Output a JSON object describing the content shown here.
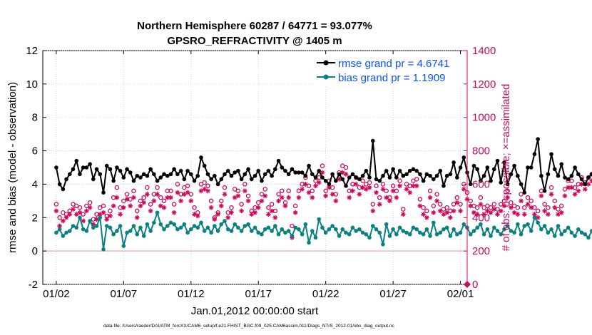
{
  "chart_data": {
    "type": "line",
    "title_line1": "Northern Hemisphere 60287 / 64771 = 93.077%",
    "title_line2": "GPSRO_REFRACTIVITY @ 1405 m",
    "xlabel": "Jan.01,2012 00:00:00 start",
    "ylabel_left": "rmse and bias (model - observation)",
    "ylabel_right": "# of obs: o=possible; ×=assimilated",
    "xlim_days": [
      0,
      31.5
    ],
    "ylim_left": [
      -2,
      12
    ],
    "ylim_right": [
      0,
      1400
    ],
    "x_tick_labels": [
      "01/02",
      "01/07",
      "01/12",
      "01/17",
      "01/22",
      "01/27",
      "02/01"
    ],
    "x_tick_days": [
      1,
      6,
      11,
      16,
      21,
      26,
      31
    ],
    "y_left_ticks": [
      "-2",
      "0",
      "2",
      "4",
      "6",
      "8",
      "10",
      "12"
    ],
    "y_right_ticks": [
      "0",
      "200",
      "400",
      "600",
      "800",
      "1000",
      "1200",
      "1400"
    ],
    "legend": {
      "rmse": "rmse grand pr = 4.6741",
      "bias": "bias grand pr = 1.1909"
    },
    "colors": {
      "rmse": "#000000",
      "bias": "#0a8080",
      "obs": "#cc0a5c",
      "legend_text": "#0a52ff",
      "zero_line": "#e8b0c4"
    },
    "x_step_days": 0.25,
    "series": [
      {
        "name": "rmse",
        "values": [
          5.0,
          4.0,
          3.7,
          4.3,
          4.6,
          4.9,
          5.4,
          4.6,
          5.0,
          5.0,
          5.2,
          4.3,
          4.9,
          4.6,
          3.5,
          5.1,
          4.9,
          4.2,
          5.0,
          4.8,
          4.4,
          4.9,
          4.7,
          4.2,
          4.5,
          4.4,
          4.6,
          4.5,
          4.9,
          4.6,
          4.2,
          4.4,
          4.6,
          4.5,
          4.6,
          4.9,
          4.6,
          4.8,
          4.3,
          4.8,
          4.6,
          4.2,
          4.5,
          5.6,
          5.1,
          4.6,
          4.3,
          4.5,
          4.0,
          4.3,
          4.6,
          4.8,
          4.5,
          4.7,
          4.8,
          4.3,
          4.6,
          4.9,
          4.3,
          4.5,
          4.8,
          4.2,
          4.6,
          4.8,
          4.5,
          4.9,
          5.4,
          5.0,
          4.8,
          4.6,
          4.9,
          4.7,
          4.7,
          4.7,
          4.5,
          5.1,
          4.6,
          4.4,
          4.8,
          4.4,
          4.2,
          4.0,
          4.6,
          4.2,
          4.6,
          4.3,
          3.9,
          4.4,
          4.6,
          4.4,
          4.3,
          4.5,
          4.8,
          4.4,
          6.6,
          4.3,
          4.2,
          4.5,
          4.8,
          4.4,
          4.9,
          4.4,
          4.8,
          4.5,
          4.6,
          4.8,
          4.9,
          4.8,
          4.6,
          4.2,
          4.6,
          4.5,
          4.3,
          4.5,
          4.8,
          3.9,
          4.5,
          4.6,
          5.3,
          4.4,
          5.0,
          5.6,
          4.7,
          4.0,
          5.1,
          4.9,
          4.2,
          4.5,
          5.0,
          4.2,
          4.9,
          5.4,
          4.1,
          5.3,
          4.0,
          4.6,
          5.1,
          4.5,
          4.0,
          3.5,
          5.0,
          5.0,
          5.8,
          6.7,
          4.5,
          3.6,
          4.6,
          5.8,
          4.9,
          4.5,
          5.2,
          4.4,
          4.3,
          4.5,
          5.0,
          4.6,
          4.3,
          4.0,
          4.4,
          4.6,
          4.5,
          4.5,
          5.5,
          4.4,
          4.8,
          4.7,
          5.6,
          4.6,
          5.5
        ]
      },
      {
        "name": "bias",
        "values": [
          1.1,
          1.3,
          0.9,
          1.1,
          1.2,
          1.5,
          1.4,
          2.0,
          1.3,
          1.2,
          1.8,
          1.4,
          1.5,
          2.0,
          0.1,
          1.5,
          1.4,
          1.0,
          1.2,
          1.5,
          0.3,
          1.1,
          1.2,
          1.5,
          1.0,
          1.4,
          0.9,
          1.6,
          1.2,
          1.7,
          2.3,
          1.6,
          1.3,
          1.5,
          1.7,
          1.6,
          1.3,
          1.4,
          1.6,
          1.1,
          1.3,
          1.5,
          1.4,
          1.7,
          1.2,
          1.4,
          1.1,
          1.5,
          1.2,
          1.6,
          1.8,
          1.3,
          1.2,
          1.6,
          1.4,
          1.2,
          1.5,
          1.6,
          1.2,
          1.4,
          1.1,
          1.0,
          1.3,
          1.4,
          1.2,
          1.5,
          1.0,
          1.3,
          1.1,
          1.2,
          0.9,
          1.4,
          1.3,
          1.0,
          1.6,
          0.5,
          1.2,
          0.8,
          1.9,
          1.4,
          1.1,
          1.3,
          1.5,
          1.3,
          0.9,
          1.3,
          1.1,
          1.0,
          1.4,
          1.2,
          1.3,
          1.1,
          1.0,
          0.8,
          1.5,
          1.3,
          1.1,
          0.4,
          1.6,
          0.9,
          1.3,
          1.0,
          1.4,
          1.2,
          1.1,
          1.0,
          1.4,
          1.3,
          1.1,
          1.0,
          1.3,
          0.9,
          1.7,
          1.0,
          1.1,
          1.3,
          1.4,
          0.9,
          1.3,
          1.0,
          1.1,
          1.6,
          1.4,
          1.0,
          1.2,
          1.4,
          1.6,
          1.0,
          1.3,
          0.9,
          1.4,
          1.2,
          1.0,
          1.3,
          1.5,
          1.2,
          1.1,
          1.6,
          1.0,
          1.5,
          1.6,
          1.2,
          2.0,
          1.7,
          1.3,
          1.5,
          1.1,
          1.3,
          0.9,
          1.5,
          1.0,
          1.2,
          1.4,
          1.1,
          0.9,
          1.3,
          1.1,
          1.0,
          0.8,
          1.2,
          0.5,
          0.4,
          1.6,
          1.1,
          1.0,
          1.9,
          1.6,
          1.0,
          1.6
        ]
      },
      {
        "name": "obs_possible",
        "values": [
          480,
          400,
          430,
          420,
          440,
          480,
          470,
          460,
          420,
          470,
          490,
          390,
          420,
          460,
          470,
          410,
          440,
          520,
          580,
          460,
          500,
          540,
          510,
          560,
          440,
          500,
          520,
          580,
          480,
          540,
          580,
          520,
          500,
          560,
          560,
          480,
          600,
          540,
          580,
          590,
          540,
          460,
          430,
          600,
          610,
          590,
          500,
          400,
          430,
          500,
          580,
          430,
          460,
          570,
          560,
          480,
          600,
          530,
          440,
          460,
          490,
          540,
          570,
          460,
          480,
          440,
          540,
          560,
          490,
          560,
          350,
          470,
          560,
          600,
          640,
          590,
          560,
          620,
          640,
          710,
          560,
          620,
          580,
          540,
          670,
          710,
          700,
          560,
          600,
          640,
          580,
          620,
          600,
          610,
          480,
          590,
          520,
          600,
          560,
          520,
          590,
          560,
          620,
          450,
          600,
          590,
          620,
          630,
          510,
          460,
          440,
          560,
          470,
          540,
          480,
          450,
          460,
          440,
          480,
          520,
          480,
          600,
          550,
          500,
          470,
          460,
          520,
          460,
          470,
          460,
          480,
          450,
          480,
          500,
          560,
          490,
          470,
          460,
          540,
          460,
          520,
          500,
          460,
          440,
          560,
          480,
          460,
          580,
          500,
          450,
          470,
          570,
          620,
          620,
          580,
          600,
          640,
          610,
          640,
          660,
          600,
          720,
          680,
          640,
          580,
          600,
          620,
          640,
          620,
          610,
          680,
          700
        ]
      },
      {
        "name": "obs_assimilated",
        "values": [
          440,
          350,
          380,
          400,
          420,
          450,
          420,
          430,
          380,
          440,
          460,
          360,
          390,
          420,
          430,
          390,
          410,
          470,
          520,
          420,
          460,
          510,
          470,
          520,
          400,
          470,
          490,
          540,
          440,
          500,
          540,
          470,
          460,
          520,
          520,
          430,
          550,
          500,
          540,
          550,
          500,
          420,
          410,
          560,
          570,
          560,
          460,
          390,
          420,
          470,
          540,
          400,
          430,
          520,
          530,
          440,
          560,
          500,
          420,
          430,
          460,
          500,
          530,
          420,
          440,
          400,
          500,
          520,
          470,
          520,
          280,
          430,
          520,
          570,
          600,
          550,
          520,
          590,
          610,
          670,
          530,
          580,
          540,
          500,
          630,
          670,
          660,
          520,
          560,
          600,
          540,
          580,
          570,
          580,
          440,
          550,
          480,
          570,
          520,
          500,
          560,
          520,
          590,
          420,
          570,
          550,
          590,
          590,
          470,
          420,
          400,
          520,
          430,
          500,
          440,
          420,
          430,
          400,
          440,
          490,
          440,
          570,
          510,
          470,
          430,
          420,
          480,
          420,
          440,
          430,
          450,
          420,
          440,
          470,
          520,
          460,
          430,
          420,
          500,
          420,
          480,
          460,
          420,
          400,
          530,
          440,
          420,
          540,
          460,
          420,
          430,
          530,
          580,
          580,
          540,
          560,
          600,
          570,
          600,
          620,
          560,
          680,
          640,
          600,
          540,
          570,
          580,
          600,
          580,
          580,
          640,
          660
        ]
      }
    ]
  },
  "footnote": "data file: /Users/raeder/DAI/ATM_forcXX/CAM6_setup/f.e21.FHIST_BGC.f09_025.CAM6assim.011/Diags_NTrS_2012-01/obs_diag_output.nc"
}
